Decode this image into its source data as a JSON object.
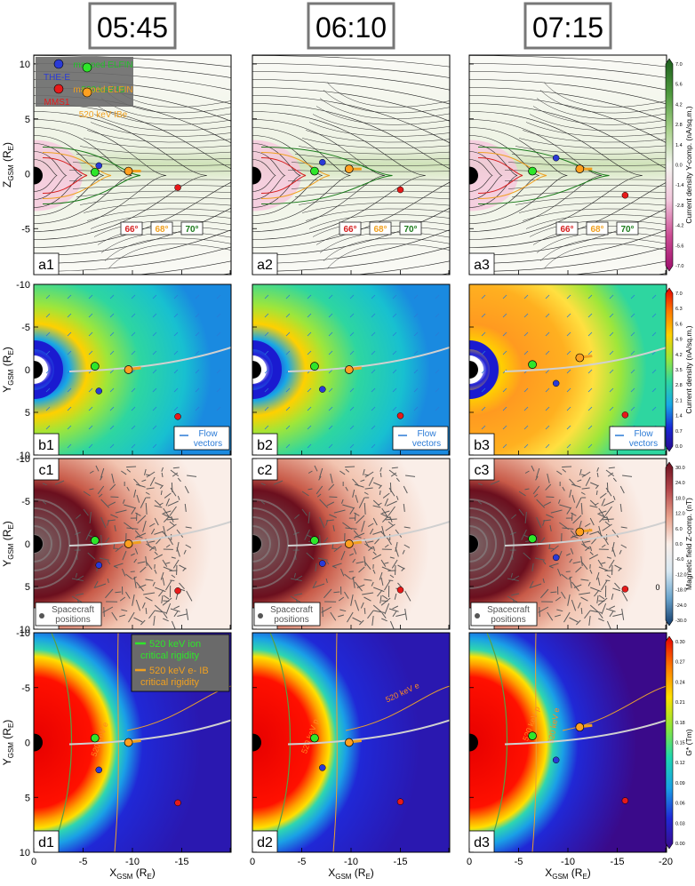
{
  "times": [
    "05:45",
    "06:10",
    "07:15"
  ],
  "rows": [
    {
      "y_label": "Z",
      "y_sub": "GSM",
      "y_unit": "(R",
      "y_unit_sub": "E",
      "y_unit_end": ")",
      "panel_labels": [
        "a1",
        "a2",
        "a3"
      ],
      "y_ticks": [
        "10",
        "5",
        "0",
        "-5"
      ]
    },
    {
      "y_label": "Y",
      "y_sub": "GSM",
      "y_unit": "(R",
      "y_unit_sub": "E",
      "y_unit_end": ")",
      "panel_labels": [
        "b1",
        "b2",
        "b3"
      ],
      "y_ticks": [
        "-10",
        "-5",
        "0",
        "5",
        "10"
      ]
    },
    {
      "y_label": "Y",
      "y_sub": "GSM",
      "y_unit": "(R",
      "y_unit_sub": "E",
      "y_unit_end": ")",
      "panel_labels": [
        "c1",
        "c2",
        "c3"
      ],
      "y_ticks": [
        "-10",
        "-5",
        "0",
        "5",
        "10"
      ]
    },
    {
      "y_label": "Y",
      "y_sub": "GSM",
      "y_unit": "(R",
      "y_unit_sub": "E",
      "y_unit_end": ")",
      "panel_labels": [
        "d1",
        "d2",
        "d3"
      ],
      "y_ticks": [
        "-10",
        "-5",
        "0",
        "5",
        "10"
      ]
    }
  ],
  "x_axis": {
    "label": "X",
    "sub": "GSM",
    "unit": "(R",
    "unit_sub": "E",
    "unit_end": ")",
    "ticks": [
      [
        "0",
        "-5",
        "-10",
        "-15",
        ""
      ],
      [
        "0",
        "-5",
        "-10",
        "-15",
        ""
      ],
      [
        "0",
        "-5",
        "-10",
        "-15",
        "-20"
      ]
    ]
  },
  "colorbars": [
    {
      "title": "Current density Y-comp. (nA/sq.m.)",
      "ticks": [
        "7.0",
        "5.6",
        "4.2",
        "2.8",
        "1.4",
        "0.0",
        "-1.4",
        "-2.8",
        "-4.2",
        "-5.6",
        "-7.0"
      ],
      "colors": [
        "#1d5e1d",
        "#4f9a3e",
        "#a8d28a",
        "#f5f5f0",
        "#f2c6dc",
        "#cc4d94",
        "#9e0f6d"
      ]
    },
    {
      "title": "Current density (nA/sq.m.)",
      "ticks": [
        "7.0",
        "6.3",
        "5.6",
        "4.9",
        "4.2",
        "3.5",
        "2.8",
        "2.1",
        "1.4",
        "0.7",
        "0.0"
      ],
      "colors": [
        "#e60000",
        "#ff7a00",
        "#ffd000",
        "#9ee63a",
        "#2ed6a0",
        "#18a7e6",
        "#1828d6",
        "#2a0a8a"
      ]
    },
    {
      "title": "Magnetic field Z-comp. (nT)",
      "ticks": [
        "30.0",
        "24.0",
        "18.0",
        "12.0",
        "6.0",
        "0.0",
        "-6.0",
        "-12.0",
        "-18.0",
        "-24.0",
        "-30.0"
      ],
      "colors": [
        "#6b0f1e",
        "#b3454a",
        "#e8a08a",
        "#faeee8",
        "#d8e8f2",
        "#6aa4cc",
        "#123a6a"
      ]
    },
    {
      "title": "G* (Tm)",
      "ticks": [
        "0.30",
        "0.27",
        "0.24",
        "0.21",
        "0.18",
        "0.15",
        "0.12",
        "0.09",
        "0.06",
        "0.03",
        "0.00"
      ],
      "colors": [
        "#e60000",
        "#ff7a00",
        "#ffe000",
        "#8ee63a",
        "#1ed6b0",
        "#1aa0e6",
        "#2028d6",
        "#3a0a8a"
      ]
    }
  ],
  "legend_a": [
    {
      "label": "mapped ELFIN",
      "color": "#22c02a",
      "marker": "#2a3ad6"
    },
    {
      "label": "THE-E",
      "color": "#2a3ad6",
      "marker": "#2ee62a"
    },
    {
      "label": "520 keV IB",
      "color": "#22c02a",
      "marker": null
    },
    {
      "label": "mapped ELFIN",
      "color": "#f0a020",
      "marker": "#e61a1a"
    },
    {
      "label": "MMS1",
      "color": "#e61a1a",
      "marker": "#ffa020"
    },
    {
      "label": "520 keV IBe",
      "color": "#f0a020",
      "marker": null
    }
  ],
  "lat_labels": [
    {
      "text": "66°",
      "color": "#d62020"
    },
    {
      "text": "68°",
      "color": "#f0a020"
    },
    {
      "text": "70°",
      "color": "#1a7a1a"
    }
  ],
  "flow_label": [
    "Flow",
    "vectors"
  ],
  "sc_label": [
    "Spacecraft",
    "positions"
  ],
  "legend_d": [
    {
      "line1": "520 keV ion",
      "line2": "critical rigidity",
      "color": "#2ee62a"
    },
    {
      "line1": "520 keV e- IB",
      "line2": "critical rigidity",
      "color": "#f0a020"
    }
  ],
  "contour_labels": [
    "520 keV e",
    "520 keV p"
  ],
  "c3_label": "0"
}
